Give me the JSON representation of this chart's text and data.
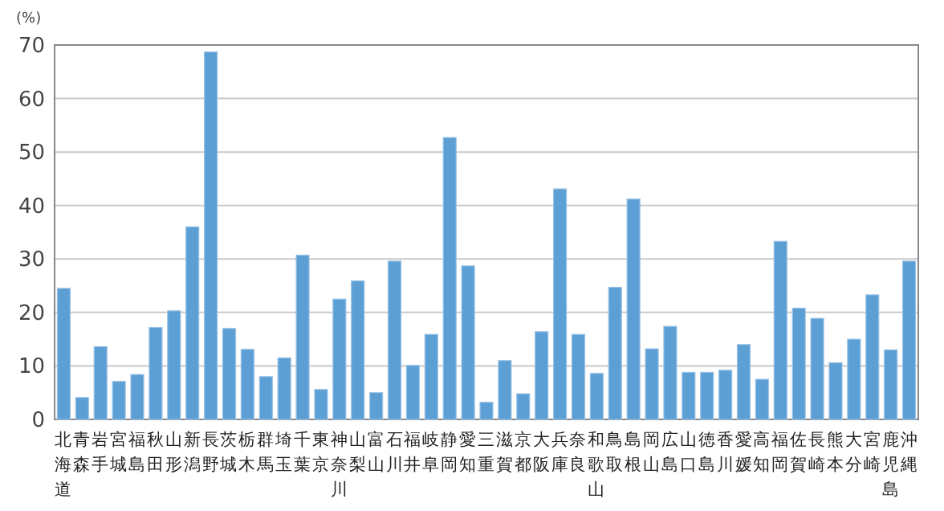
{
  "chart_data": {
    "type": "bar",
    "ylabel": "(%)",
    "categories": [
      "北海道",
      "青森",
      "岩手",
      "宮城",
      "福島",
      "秋田",
      "山形",
      "新潟",
      "長野",
      "茨城",
      "栃木",
      "群馬",
      "埼玉",
      "千葉",
      "東京",
      "神奈川",
      "山梨",
      "富山",
      "石川",
      "福井",
      "岐阜",
      "静岡",
      "愛知",
      "三重",
      "滋賀",
      "京都",
      "大阪",
      "兵庫",
      "奈良",
      "和歌山",
      "鳥取",
      "島根",
      "岡山",
      "広島",
      "山口",
      "徳島",
      "香川",
      "愛媛",
      "高知",
      "福岡",
      "佐賀",
      "長崎",
      "熊本",
      "大分",
      "宮崎",
      "鹿児島",
      "沖縄"
    ],
    "values": [
      24.5,
      4.1,
      13.6,
      7.1,
      8.4,
      17.2,
      20.3,
      36.0,
      68.7,
      17.0,
      13.1,
      8.0,
      11.5,
      30.7,
      5.6,
      22.5,
      25.9,
      5.0,
      29.6,
      10.1,
      15.9,
      52.7,
      28.7,
      3.2,
      11.0,
      4.8,
      16.4,
      43.1,
      15.9,
      8.6,
      24.7,
      41.2,
      13.2,
      17.4,
      8.8,
      8.8,
      9.2,
      14.0,
      7.5,
      33.3,
      20.8,
      18.9,
      10.6,
      15.0,
      23.3,
      13.0,
      29.6
    ],
    "color": "#5b9fd4",
    "ylim": [
      0,
      70
    ],
    "yticks": [
      0,
      10,
      20,
      30,
      40,
      50,
      60,
      70
    ],
    "grid": "y"
  }
}
